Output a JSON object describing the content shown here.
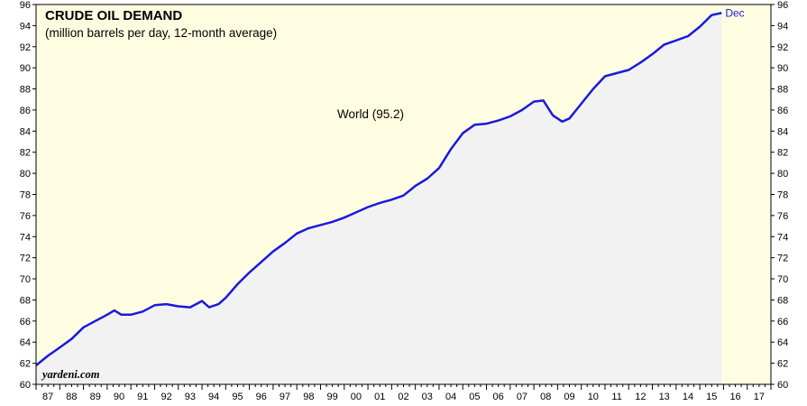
{
  "chart_data": {
    "type": "area",
    "title": "CRUDE OIL DEMAND",
    "subtitle": "(million barrels per day, 12-month average)",
    "annotation": "World (95.2)",
    "end_label": "Dec",
    "source": "yardeni.com",
    "ylim": [
      60,
      96
    ],
    "yticks": [
      60,
      62,
      64,
      66,
      68,
      70,
      72,
      74,
      76,
      78,
      80,
      82,
      84,
      86,
      88,
      90,
      92,
      94,
      96
    ],
    "xlim": [
      1987.0,
      2018.0
    ],
    "xtick_labels": [
      "87",
      "88",
      "89",
      "90",
      "91",
      "92",
      "93",
      "94",
      "95",
      "96",
      "97",
      "98",
      "99",
      "00",
      "01",
      "02",
      "03",
      "04",
      "05",
      "06",
      "07",
      "08",
      "09",
      "10",
      "11",
      "12",
      "13",
      "14",
      "15",
      "16",
      "17"
    ],
    "colors": {
      "line": "#1a1adc",
      "area": "#f2f2f2",
      "background": "#fffde1"
    },
    "series": [
      {
        "values": [
          [
            1987.0,
            61.8
          ],
          [
            1987.5,
            62.7
          ],
          [
            1988.0,
            63.5
          ],
          [
            1988.5,
            64.3
          ],
          [
            1989.0,
            65.4
          ],
          [
            1989.5,
            66.0
          ],
          [
            1990.0,
            66.6
          ],
          [
            1990.3,
            67.0
          ],
          [
            1990.6,
            66.6
          ],
          [
            1991.0,
            66.6
          ],
          [
            1991.5,
            66.9
          ],
          [
            1992.0,
            67.5
          ],
          [
            1992.5,
            67.6
          ],
          [
            1993.0,
            67.4
          ],
          [
            1993.5,
            67.3
          ],
          [
            1994.0,
            67.9
          ],
          [
            1994.3,
            67.3
          ],
          [
            1994.7,
            67.6
          ],
          [
            1995.0,
            68.2
          ],
          [
            1995.5,
            69.5
          ],
          [
            1996.0,
            70.6
          ],
          [
            1996.5,
            71.6
          ],
          [
            1997.0,
            72.6
          ],
          [
            1997.5,
            73.4
          ],
          [
            1998.0,
            74.3
          ],
          [
            1998.5,
            74.8
          ],
          [
            1999.0,
            75.1
          ],
          [
            1999.5,
            75.4
          ],
          [
            2000.0,
            75.8
          ],
          [
            2000.5,
            76.3
          ],
          [
            2001.0,
            76.8
          ],
          [
            2001.5,
            77.2
          ],
          [
            2002.0,
            77.5
          ],
          [
            2002.5,
            77.9
          ],
          [
            2003.0,
            78.8
          ],
          [
            2003.5,
            79.5
          ],
          [
            2004.0,
            80.5
          ],
          [
            2004.5,
            82.3
          ],
          [
            2005.0,
            83.8
          ],
          [
            2005.5,
            84.6
          ],
          [
            2006.0,
            84.7
          ],
          [
            2006.5,
            85.0
          ],
          [
            2007.0,
            85.4
          ],
          [
            2007.5,
            86.0
          ],
          [
            2008.0,
            86.8
          ],
          [
            2008.4,
            86.9
          ],
          [
            2008.8,
            85.5
          ],
          [
            2009.2,
            84.9
          ],
          [
            2009.5,
            85.2
          ],
          [
            2010.0,
            86.6
          ],
          [
            2010.5,
            88.0
          ],
          [
            2011.0,
            89.2
          ],
          [
            2011.5,
            89.5
          ],
          [
            2012.0,
            89.8
          ],
          [
            2012.5,
            90.5
          ],
          [
            2013.0,
            91.3
          ],
          [
            2013.5,
            92.2
          ],
          [
            2014.0,
            92.6
          ],
          [
            2014.5,
            93.0
          ],
          [
            2015.0,
            93.9
          ],
          [
            2015.5,
            95.0
          ],
          [
            2015.92,
            95.2
          ]
        ]
      }
    ]
  }
}
